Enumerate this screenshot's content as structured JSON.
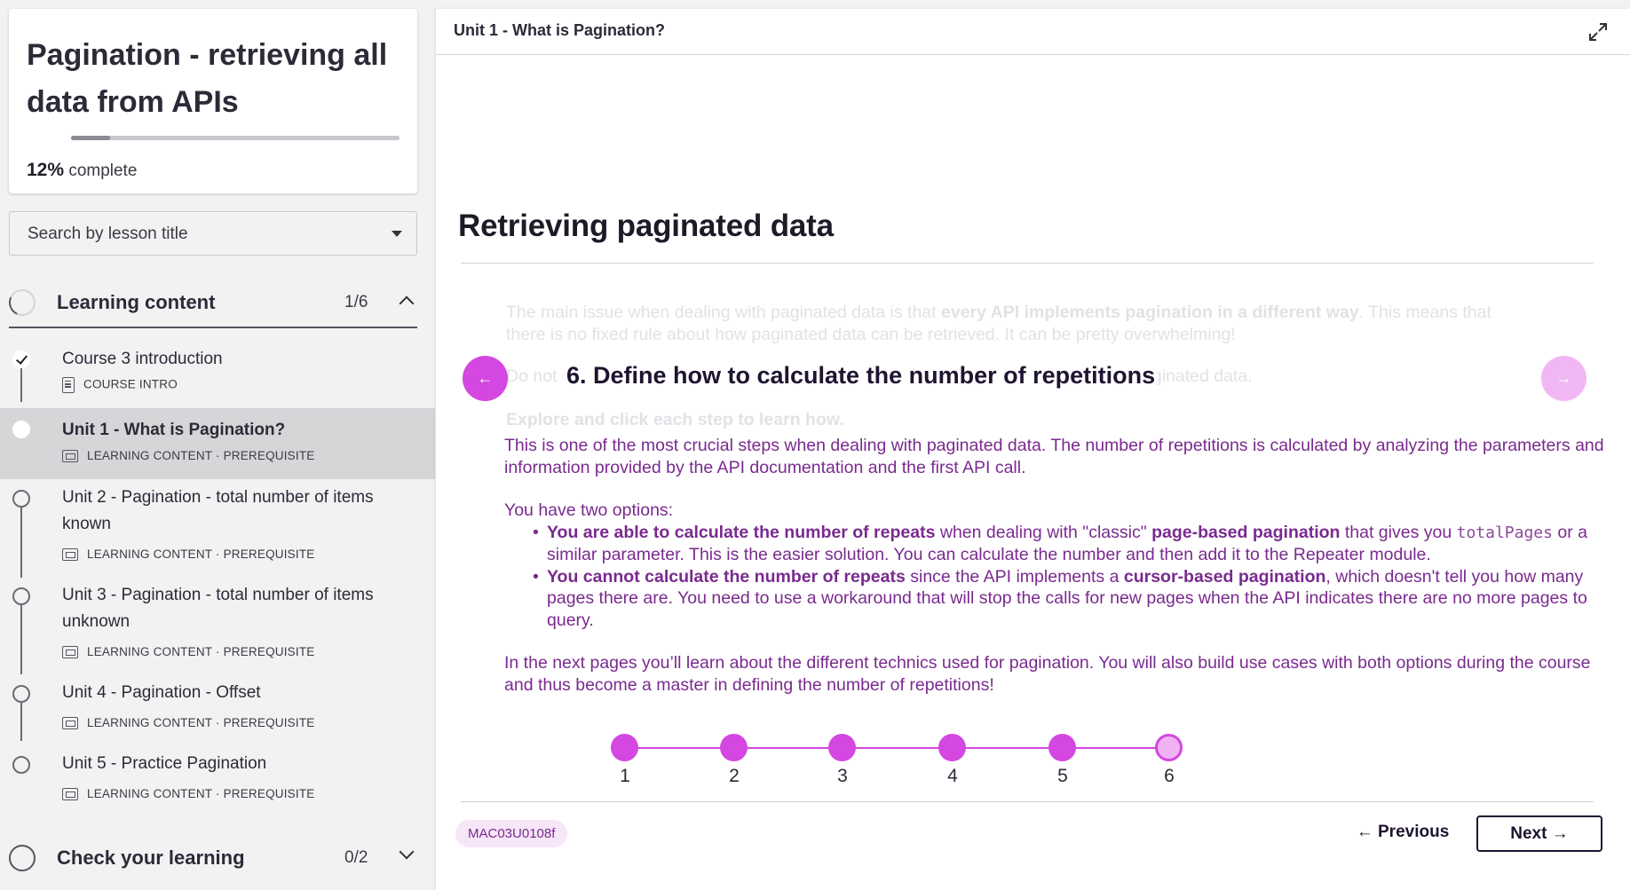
{
  "sidebar": {
    "course": {
      "title": "Pagination - retrieving all data from APIs",
      "progress_value": "12%",
      "progress_suffix": "complete",
      "progress_fraction": 0.12
    },
    "search": {
      "placeholder": "Search by lesson title"
    },
    "sections": [
      {
        "label": "Learning content",
        "count": "1/6",
        "expanded": true
      },
      {
        "label": "Check your learning",
        "count": "0/2",
        "expanded": false
      }
    ],
    "lessons": [
      {
        "title": "Course 3 introduction",
        "meta": "COURSE INTRO",
        "state": "completed"
      },
      {
        "title": "Unit 1 - What is Pagination?",
        "meta": "LEARNING CONTENT · PREREQUISITE",
        "state": "active"
      },
      {
        "title": "Unit 2 - Pagination - total number of items known",
        "meta": "LEARNING CONTENT · PREREQUISITE",
        "state": "not-started"
      },
      {
        "title": "Unit 3 - Pagination - total number of items unknown",
        "meta": "LEARNING CONTENT · PREREQUISITE",
        "state": "not-started"
      },
      {
        "title": "Unit 4 - Pagination - Offset",
        "meta": "LEARNING CONTENT · PREREQUISITE",
        "state": "not-started"
      },
      {
        "title": "Unit 5 - Practice Pagination",
        "meta": "LEARNING CONTENT · PREREQUISITE",
        "state": "not-started"
      }
    ]
  },
  "main": {
    "topbar_title": "Unit 1 - What is Pagination?",
    "heading": "Retrieving paginated data",
    "faded_intro": {
      "line1_a": "The main issue when dealing with paginated data is that ",
      "line1_b": "every API implements pagination in a different way",
      "line1_c": ". This means that",
      "line2": "there is no fixed rule about how paginated data can be retrieved. It can be pretty overwhelming!",
      "line3_a": "Do not",
      "line3_b": "aginated data.",
      "line4": "Explore and click each step to learn how."
    },
    "step": {
      "title": "6. Define how to calculate the number of repetitions",
      "p1": "This is one of the most crucial steps when dealing with paginated data. The number of repetitions is calculated by analyzing the parameters and information provided by the API documentation and the first API call.",
      "p2": "You have two options:",
      "opt1_b1": "You are able to calculate the number of repeats",
      "opt1_t1": " when dealing with \"classic\" ",
      "opt1_b2": "page-based pagination",
      "opt1_t2": " that gives you ",
      "opt1_code": "totalPages",
      "opt1_t3": " or a similar parameter. This is the easier solution. You can calculate the number and then add it to the Repeater module.",
      "opt2_b1": "You cannot calculate the number of repeats",
      "opt2_t1": " since the API implements a ",
      "opt2_b2": "cursor-based pagination",
      "opt2_t2": ", which doesn't tell you how many pages there are. You need to use a workaround that will stop the calls for new pages when the API indicates there are no more pages to query.",
      "p3": "In the next pages you’ll learn about the different technics used for pagination. You will also build use cases with both options during the course and thus become a master in defining the number of repetitions!"
    },
    "stepper": {
      "steps": [
        "1",
        "2",
        "3",
        "4",
        "5",
        "6"
      ],
      "current": 6
    },
    "footer": {
      "code": "MAC03U0108f",
      "previous_label": "Previous",
      "next_label": "Next"
    },
    "colors": {
      "accent": "#d447e0",
      "accent_light": "#f1b7f4",
      "body_text": "#7a2a8f",
      "dark": "#1f1430"
    }
  }
}
